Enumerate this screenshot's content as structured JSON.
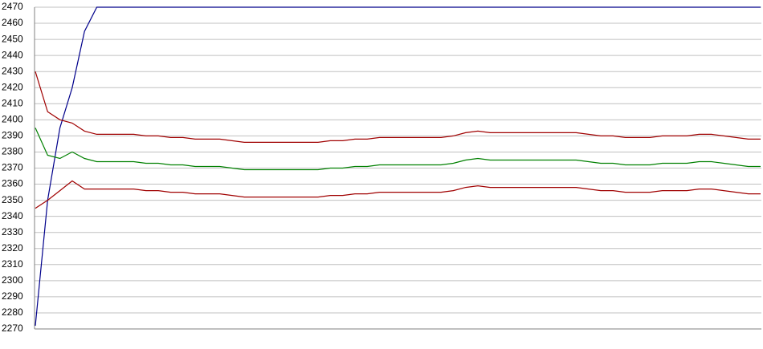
{
  "chart_data": {
    "type": "line",
    "categories": [
      null,
      null,
      null,
      null,
      null,
      null,
      null,
      null,
      null,
      null,
      null,
      null,
      null,
      null,
      null,
      null,
      null,
      null,
      null,
      null,
      null,
      null,
      null,
      null,
      null,
      null,
      null,
      null,
      null,
      null,
      null,
      null,
      null,
      null,
      null,
      null,
      null,
      null,
      null,
      null,
      null,
      null,
      null,
      null,
      null,
      null,
      null,
      null,
      null,
      null,
      null,
      null,
      null,
      null,
      null,
      null,
      null,
      null,
      null,
      null
    ],
    "series": [
      {
        "color": "#00008b",
        "values": [
          2272,
          2350,
          2395,
          2420,
          2455,
          2470,
          2470,
          2470,
          2470,
          2470,
          2470,
          2470,
          2470,
          2470,
          2470,
          2470,
          2470,
          2470,
          2470,
          2470,
          2470,
          2470,
          2470,
          2470,
          2470,
          2470,
          2470,
          2470,
          2470,
          2470,
          2470,
          2470,
          2470,
          2470,
          2470,
          2470,
          2470,
          2470,
          2470,
          2470,
          2470,
          2470,
          2470,
          2470,
          2470,
          2470,
          2470,
          2470,
          2470,
          2470,
          2470,
          2470,
          2470,
          2470,
          2470,
          2470,
          2470,
          2470,
          2470,
          2470
        ]
      },
      {
        "color": "#a00000",
        "values": [
          2430,
          2405,
          2400,
          2398,
          2393,
          2391,
          2391,
          2391,
          2391,
          2390,
          2390,
          2389,
          2389,
          2388,
          2388,
          2388,
          2387,
          2386,
          2386,
          2386,
          2386,
          2386,
          2386,
          2386,
          2387,
          2387,
          2388,
          2388,
          2389,
          2389,
          2389,
          2389,
          2389,
          2389,
          2390,
          2392,
          2393,
          2392,
          2392,
          2392,
          2392,
          2392,
          2392,
          2392,
          2392,
          2391,
          2390,
          2390,
          2389,
          2389,
          2389,
          2390,
          2390,
          2390,
          2391,
          2391,
          2390,
          2389,
          2388,
          2388
        ]
      },
      {
        "color": "#008000",
        "values": [
          2395,
          2378,
          2376,
          2380,
          2376,
          2374,
          2374,
          2374,
          2374,
          2373,
          2373,
          2372,
          2372,
          2371,
          2371,
          2371,
          2370,
          2369,
          2369,
          2369,
          2369,
          2369,
          2369,
          2369,
          2370,
          2370,
          2371,
          2371,
          2372,
          2372,
          2372,
          2372,
          2372,
          2372,
          2373,
          2375,
          2376,
          2375,
          2375,
          2375,
          2375,
          2375,
          2375,
          2375,
          2375,
          2374,
          2373,
          2373,
          2372,
          2372,
          2372,
          2373,
          2373,
          2373,
          2374,
          2374,
          2373,
          2372,
          2371,
          2371
        ]
      },
      {
        "color": "#a00000",
        "values": [
          2345,
          2350,
          2356,
          2362,
          2357,
          2357,
          2357,
          2357,
          2357,
          2356,
          2356,
          2355,
          2355,
          2354,
          2354,
          2354,
          2353,
          2352,
          2352,
          2352,
          2352,
          2352,
          2352,
          2352,
          2353,
          2353,
          2354,
          2354,
          2355,
          2355,
          2355,
          2355,
          2355,
          2355,
          2356,
          2358,
          2359,
          2358,
          2358,
          2358,
          2358,
          2358,
          2358,
          2358,
          2358,
          2357,
          2356,
          2356,
          2355,
          2355,
          2355,
          2356,
          2356,
          2356,
          2357,
          2357,
          2356,
          2355,
          2354,
          2354
        ]
      }
    ],
    "ylim": [
      2270,
      2470
    ],
    "yticks": [
      2270,
      2280,
      2290,
      2300,
      2310,
      2320,
      2330,
      2340,
      2350,
      2360,
      2370,
      2380,
      2390,
      2400,
      2410,
      2420,
      2430,
      2440,
      2450,
      2460,
      2470
    ],
    "grid": true
  }
}
